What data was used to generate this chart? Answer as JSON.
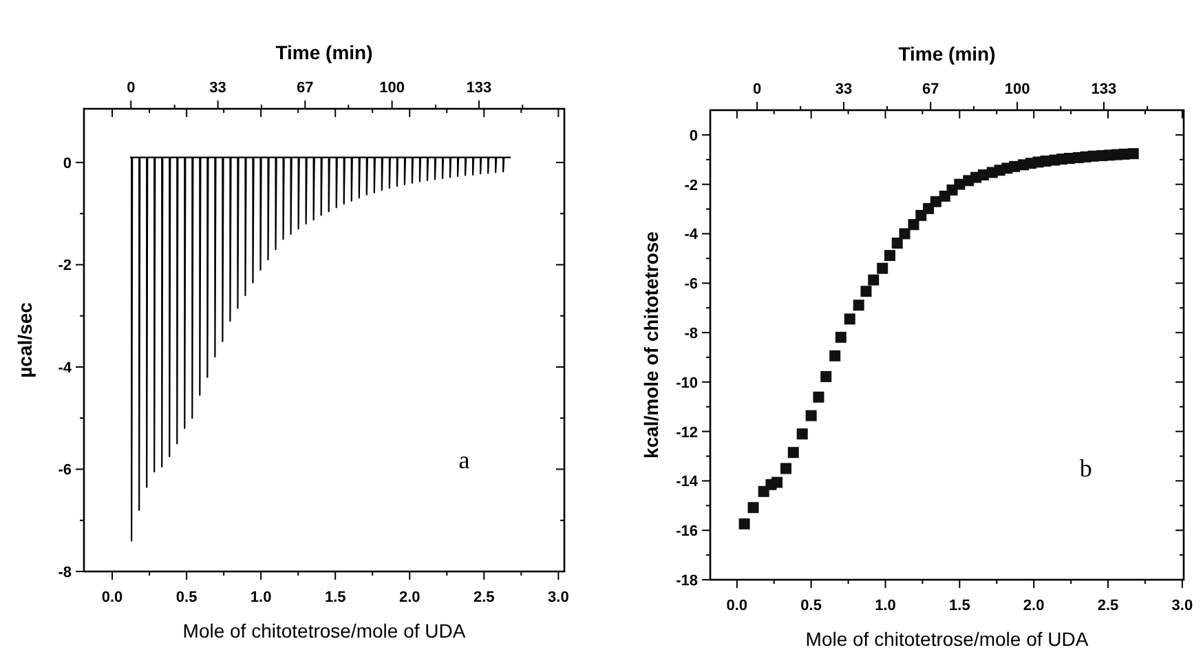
{
  "chart_data": [
    {
      "type": "line",
      "xlabel": "Mole of chitotetrose/mole of UDA",
      "ylabel": "µcal/sec",
      "x2label": "Time (min)",
      "annotations": [
        "a"
      ],
      "xlim": [
        -0.19,
        3.04
      ],
      "xticks": [
        {
          "value": 0,
          "label": "0.0"
        },
        {
          "value": 0.25,
          "label": null
        },
        {
          "value": 0.5,
          "label": "0.5"
        },
        {
          "value": 0.75,
          "label": null
        },
        {
          "value": 1,
          "label": "1.0"
        },
        {
          "value": 1.25,
          "label": null
        },
        {
          "value": 1.5,
          "label": "1.5"
        },
        {
          "value": 1.75,
          "label": null
        },
        {
          "value": 2,
          "label": "2.0"
        },
        {
          "value": 2.25,
          "label": null
        },
        {
          "value": 2.5,
          "label": "2.5"
        },
        {
          "value": 2.75,
          "label": null
        },
        {
          "value": 3,
          "label": "3.0"
        }
      ],
      "x2lim": [
        -18,
        166
      ],
      "x2ticks": [
        {
          "value": 0,
          "label": "0"
        },
        {
          "value": 16.7,
          "label": null
        },
        {
          "value": 33.3,
          "label": "33"
        },
        {
          "value": 50,
          "label": null
        },
        {
          "value": 66.7,
          "label": "67"
        },
        {
          "value": 83.3,
          "label": null
        },
        {
          "value": 100,
          "label": "100"
        },
        {
          "value": 116.7,
          "label": null
        },
        {
          "value": 133.3,
          "label": "133"
        },
        {
          "value": 150,
          "label": null
        }
      ],
      "ylim": [
        -8,
        1.05
      ],
      "yticks": [
        -8,
        {
          "value": -7,
          "label": null
        },
        -6,
        {
          "value": -5,
          "label": null
        },
        -4,
        {
          "value": -3,
          "label": null
        },
        -2,
        {
          "value": -1,
          "label": null
        },
        0
      ],
      "marker": "none",
      "line_style": "solid",
      "series": [
        {
          "color": "#000000",
          "x": [
            0.12,
            0.13,
            0.13,
            0.135,
            0.181,
            0.181,
            0.186,
            0.232,
            0.232,
            0.237,
            0.283,
            0.283,
            0.288,
            0.334,
            0.334,
            0.339,
            0.385,
            0.385,
            0.39,
            0.436,
            0.436,
            0.441,
            0.487,
            0.487,
            0.492,
            0.538,
            0.538,
            0.543,
            0.589,
            0.589,
            0.594,
            0.64,
            0.64,
            0.645,
            0.691,
            0.691,
            0.696,
            0.742,
            0.742,
            0.747,
            0.793,
            0.793,
            0.798,
            0.844,
            0.844,
            0.849,
            0.895,
            0.895,
            0.9,
            0.946,
            0.946,
            0.951,
            0.997,
            0.997,
            1.002,
            1.048,
            1.048,
            1.053,
            1.099,
            1.099,
            1.104,
            1.15,
            1.15,
            1.155,
            1.201,
            1.201,
            1.206,
            1.252,
            1.252,
            1.257,
            1.303,
            1.303,
            1.308,
            1.354,
            1.354,
            1.359,
            1.405,
            1.405,
            1.41,
            1.456,
            1.456,
            1.461,
            1.507,
            1.507,
            1.512,
            1.558,
            1.558,
            1.563,
            1.609,
            1.609,
            1.614,
            1.66,
            1.66,
            1.665,
            1.711,
            1.711,
            1.716,
            1.762,
            1.762,
            1.767,
            1.813,
            1.813,
            1.818,
            1.864,
            1.864,
            1.869,
            1.915,
            1.915,
            1.92,
            1.966,
            1.966,
            1.971,
            2.017,
            2.017,
            2.022,
            2.068,
            2.068,
            2.073,
            2.119,
            2.119,
            2.124,
            2.17,
            2.17,
            2.175,
            2.221,
            2.221,
            2.226,
            2.272,
            2.272,
            2.277,
            2.323,
            2.323,
            2.328,
            2.374,
            2.374,
            2.379,
            2.425,
            2.425,
            2.43,
            2.476,
            2.476,
            2.481,
            2.527,
            2.527,
            2.532,
            2.578,
            2.578,
            2.583,
            2.629,
            2.629,
            2.634,
            2.68
          ],
          "values": [
            0.1,
            0.1,
            -7.4,
            0.1,
            0.1,
            -6.8,
            0.1,
            0.1,
            -6.35,
            0.1,
            0.1,
            -6.05,
            0.1,
            0.1,
            -5.95,
            0.1,
            0.1,
            -5.75,
            0.1,
            0.1,
            -5.5,
            0.1,
            0.1,
            -5.2,
            0.1,
            0.1,
            -5.0,
            0.1,
            0.1,
            -4.55,
            0.1,
            0.1,
            -4.2,
            0.1,
            0.1,
            -3.8,
            0.1,
            0.1,
            -3.5,
            0.1,
            0.1,
            -3.1,
            0.1,
            0.1,
            -2.85,
            0.1,
            0.1,
            -2.6,
            0.1,
            0.1,
            -2.35,
            0.1,
            0.1,
            -2.1,
            0.1,
            0.1,
            -1.9,
            0.1,
            0.1,
            -1.7,
            0.1,
            0.1,
            -1.5,
            0.1,
            0.1,
            -1.4,
            0.1,
            0.1,
            -1.3,
            0.1,
            0.1,
            -1.2,
            0.1,
            0.1,
            -1.12,
            0.1,
            0.1,
            -1.03,
            0.1,
            0.1,
            -0.96,
            0.1,
            0.1,
            -0.88,
            0.1,
            0.1,
            -0.81,
            0.1,
            0.1,
            -0.75,
            0.1,
            0.1,
            -0.69,
            0.1,
            0.1,
            -0.63,
            0.1,
            0.1,
            -0.59,
            0.1,
            0.1,
            -0.54,
            0.1,
            0.1,
            -0.5,
            0.1,
            0.1,
            -0.46,
            0.1,
            0.1,
            -0.43,
            0.1,
            0.1,
            -0.4,
            0.1,
            0.1,
            -0.37,
            0.1,
            0.1,
            -0.35,
            0.1,
            0.1,
            -0.33,
            0.1,
            0.1,
            -0.31,
            0.1,
            0.1,
            -0.29,
            0.1,
            0.1,
            -0.27,
            0.1,
            0.1,
            -0.25,
            0.1,
            0.1,
            -0.24,
            0.1,
            0.1,
            -0.22,
            0.1,
            0.1,
            -0.21,
            0.1,
            0.1,
            -0.19,
            0.1,
            0.1,
            -0.18,
            0.1,
            0.1
          ]
        }
      ]
    },
    {
      "type": "scatter",
      "xlabel": "Mole of chitotetrose/mole of UDA",
      "ylabel": "kcal/mole of chitotetrose",
      "x2label": "Time (min)",
      "annotations": [
        "b"
      ],
      "xlim": [
        -0.18,
        3.01
      ],
      "xticks": [
        {
          "value": 0,
          "label": "0.0"
        },
        {
          "value": 0.25,
          "label": null
        },
        {
          "value": 0.5,
          "label": "0.5"
        },
        {
          "value": 0.75,
          "label": null
        },
        {
          "value": 1,
          "label": "1.0"
        },
        {
          "value": 1.25,
          "label": null
        },
        {
          "value": 1.5,
          "label": "1.5"
        },
        {
          "value": 1.75,
          "label": null
        },
        {
          "value": 2,
          "label": "2.0"
        },
        {
          "value": 2.25,
          "label": null
        },
        {
          "value": 2.5,
          "label": "2.5"
        },
        {
          "value": 2.75,
          "label": null
        },
        {
          "value": 3,
          "label": "3.0"
        }
      ],
      "x2lim": [
        -18,
        164
      ],
      "x2ticks": [
        {
          "value": 0,
          "label": "0"
        },
        {
          "value": 16.7,
          "label": null
        },
        {
          "value": 33.3,
          "label": "33"
        },
        {
          "value": 50,
          "label": null
        },
        {
          "value": 66.7,
          "label": "67"
        },
        {
          "value": 83.3,
          "label": null
        },
        {
          "value": 100,
          "label": "100"
        },
        {
          "value": 116.7,
          "label": null
        },
        {
          "value": 133.3,
          "label": "133"
        },
        {
          "value": 150,
          "label": null
        }
      ],
      "ylim": [
        -18,
        1
      ],
      "yticks": [
        -18,
        {
          "value": -17,
          "label": null
        },
        -16,
        {
          "value": -15,
          "label": null
        },
        -14,
        {
          "value": -13,
          "label": null
        },
        -12,
        {
          "value": -11,
          "label": null
        },
        -10,
        {
          "value": -9,
          "label": null
        },
        -8,
        {
          "value": -7,
          "label": null
        },
        -6,
        {
          "value": -5,
          "label": null
        },
        -4,
        {
          "value": -3,
          "label": null
        },
        -2,
        {
          "value": -1,
          "label": null
        },
        0
      ],
      "marker": "square",
      "series": [
        {
          "color": "#111111",
          "x": [
            0.05,
            0.11,
            0.18,
            0.23,
            0.27,
            0.33,
            0.38,
            0.44,
            0.5,
            0.55,
            0.6,
            0.66,
            0.7,
            0.76,
            0.82,
            0.87,
            0.92,
            0.98,
            1.03,
            1.08,
            1.13,
            1.19,
            1.24,
            1.29,
            1.34,
            1.4,
            1.45,
            1.5,
            1.56,
            1.61,
            1.66,
            1.72,
            1.77,
            1.82,
            1.87,
            1.93,
            1.98,
            2.03,
            2.08,
            2.14,
            2.19,
            2.24,
            2.3,
            2.35,
            2.4,
            2.46,
            2.51,
            2.56,
            2.61,
            2.67
          ],
          "values": [
            -15.74,
            -15.08,
            -14.43,
            -14.15,
            -14.06,
            -13.5,
            -12.85,
            -12.1,
            -11.36,
            -10.61,
            -9.78,
            -8.94,
            -8.19,
            -7.45,
            -6.89,
            -6.33,
            -5.87,
            -5.4,
            -4.88,
            -4.38,
            -4.0,
            -3.63,
            -3.26,
            -2.98,
            -2.7,
            -2.48,
            -2.23,
            -2.0,
            -1.85,
            -1.72,
            -1.62,
            -1.52,
            -1.43,
            -1.35,
            -1.28,
            -1.21,
            -1.15,
            -1.1,
            -1.06,
            -1.02,
            -0.98,
            -0.95,
            -0.92,
            -0.89,
            -0.86,
            -0.84,
            -0.82,
            -0.8,
            -0.78,
            -0.76
          ]
        }
      ]
    }
  ]
}
